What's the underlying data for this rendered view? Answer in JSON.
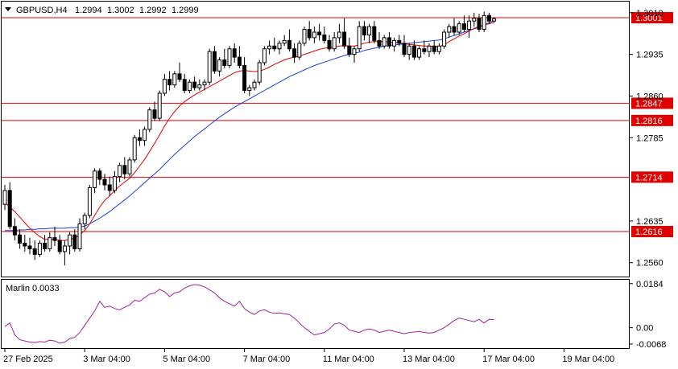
{
  "chart_data": [
    {
      "type": "candlestick",
      "symbol": "GBPUSD,H4",
      "ohlc_header": [
        "1.2994",
        "1.3002",
        "1.2992",
        "1.2999"
      ],
      "ylim": [
        1.2535,
        1.303
      ],
      "y_ticks": [
        {
          "value": 1.301,
          "label": "1.3010"
        },
        {
          "value": 1.2935,
          "label": "1.2935"
        },
        {
          "value": 1.286,
          "label": "1.2860"
        },
        {
          "value": 1.2785,
          "label": "1.2785"
        },
        {
          "value": 1.2635,
          "label": "1.2635"
        },
        {
          "value": 1.256,
          "label": "1.2560"
        }
      ],
      "x_ticks": [
        {
          "index": 0,
          "label": "27 Feb 2025"
        },
        {
          "index": 16,
          "label": "3 Mar 04:00"
        },
        {
          "index": 32,
          "label": "5 Mar 04:00"
        },
        {
          "index": 48,
          "label": "7 Mar 04:00"
        },
        {
          "index": 64,
          "label": "11 Mar 04:00"
        },
        {
          "index": 80,
          "label": "13 Mar 04:00"
        },
        {
          "index": 96,
          "label": "17 Mar 04:00"
        },
        {
          "index": 112,
          "label": "19 Mar 04:00"
        }
      ],
      "levels": [
        {
          "value": 1.3001,
          "label": "1.3001"
        },
        {
          "value": 1.2847,
          "label": "1.2847"
        },
        {
          "value": 1.2816,
          "label": "1.2816"
        },
        {
          "value": 1.2714,
          "label": "1.2714"
        },
        {
          "value": 1.2616,
          "label": "1.2616"
        }
      ],
      "candles": [
        [
          1.2665,
          1.27,
          1.2655,
          1.269
        ],
        [
          1.269,
          1.2705,
          1.262,
          1.2625
        ],
        [
          1.2625,
          1.264,
          1.26,
          1.261
        ],
        [
          1.261,
          1.262,
          1.2585,
          1.2595
        ],
        [
          1.2595,
          1.261,
          1.258,
          1.259
        ],
        [
          1.259,
          1.2605,
          1.2575,
          1.2585
        ],
        [
          1.2585,
          1.26,
          1.2565,
          1.2575
        ],
        [
          1.2575,
          1.26,
          1.257,
          1.2595
        ],
        [
          1.2595,
          1.261,
          1.258,
          1.2585
        ],
        [
          1.2585,
          1.2615,
          1.258,
          1.2605
        ],
        [
          1.2605,
          1.2625,
          1.259,
          1.26
        ],
        [
          1.26,
          1.261,
          1.2575,
          1.258
        ],
        [
          1.258,
          1.26,
          1.2555,
          1.259
        ],
        [
          1.259,
          1.2615,
          1.2575,
          1.261
        ],
        [
          1.261,
          1.262,
          1.258,
          1.2585
        ],
        [
          1.2585,
          1.264,
          1.258,
          1.263
        ],
        [
          1.263,
          1.265,
          1.262,
          1.2645
        ],
        [
          1.2645,
          1.27,
          1.264,
          1.2695
        ],
        [
          1.2695,
          1.273,
          1.2685,
          1.2725
        ],
        [
          1.2725,
          1.273,
          1.27,
          1.271
        ],
        [
          1.271,
          1.272,
          1.269,
          1.27
        ],
        [
          1.27,
          1.2715,
          1.268,
          1.269
        ],
        [
          1.269,
          1.2725,
          1.2685,
          1.2715
        ],
        [
          1.2715,
          1.274,
          1.2705,
          1.2735
        ],
        [
          1.2735,
          1.275,
          1.271,
          1.272
        ],
        [
          1.272,
          1.275,
          1.2715,
          1.2745
        ],
        [
          1.2745,
          1.279,
          1.274,
          1.2785
        ],
        [
          1.2785,
          1.28,
          1.277,
          1.278
        ],
        [
          1.278,
          1.2805,
          1.277,
          1.28
        ],
        [
          1.28,
          1.284,
          1.2795,
          1.2835
        ],
        [
          1.2835,
          1.285,
          1.2815,
          1.282
        ],
        [
          1.282,
          1.287,
          1.2815,
          1.2865
        ],
        [
          1.2865,
          1.29,
          1.286,
          1.289
        ],
        [
          1.289,
          1.2905,
          1.287,
          1.288
        ],
        [
          1.288,
          1.2905,
          1.2875,
          1.29
        ],
        [
          1.29,
          1.292,
          1.2885,
          1.289
        ],
        [
          1.289,
          1.29,
          1.2865,
          1.287
        ],
        [
          1.287,
          1.289,
          1.2865,
          1.2885
        ],
        [
          1.2885,
          1.2895,
          1.287,
          1.2875
        ],
        [
          1.2875,
          1.289,
          1.287,
          1.288
        ],
        [
          1.288,
          1.289,
          1.287,
          1.2885
        ],
        [
          1.2885,
          1.2945,
          1.288,
          1.294
        ],
        [
          1.294,
          1.295,
          1.29,
          1.2905
        ],
        [
          1.2905,
          1.293,
          1.2895,
          1.2925
        ],
        [
          1.2925,
          1.2945,
          1.291,
          1.2915
        ],
        [
          1.2915,
          1.295,
          1.291,
          1.2945
        ],
        [
          1.2945,
          1.2955,
          1.292,
          1.293
        ],
        [
          1.293,
          1.295,
          1.291,
          1.2915
        ],
        [
          1.2915,
          1.293,
          1.2865,
          1.287
        ],
        [
          1.287,
          1.288,
          1.286,
          1.2875
        ],
        [
          1.2875,
          1.289,
          1.287,
          1.2885
        ],
        [
          1.2885,
          1.2925,
          1.288,
          1.292
        ],
        [
          1.292,
          1.295,
          1.2915,
          1.2945
        ],
        [
          1.2945,
          1.296,
          1.2935,
          1.295
        ],
        [
          1.295,
          1.2965,
          1.294,
          1.2945
        ],
        [
          1.2945,
          1.296,
          1.2935,
          1.2955
        ],
        [
          1.2955,
          1.297,
          1.295,
          1.296
        ],
        [
          1.296,
          1.298,
          1.294,
          1.2945
        ],
        [
          1.2945,
          1.2955,
          1.292,
          1.293
        ],
        [
          1.293,
          1.296,
          1.2925,
          1.2955
        ],
        [
          1.2955,
          1.2985,
          1.295,
          1.298
        ],
        [
          1.298,
          1.2995,
          1.296,
          1.2965
        ],
        [
          1.2965,
          1.2985,
          1.2955,
          1.2975
        ],
        [
          1.2975,
          1.299,
          1.296,
          1.297
        ],
        [
          1.297,
          1.2985,
          1.2955,
          1.296
        ],
        [
          1.296,
          1.297,
          1.294,
          1.2945
        ],
        [
          1.2945,
          1.2975,
          1.294,
          1.2965
        ],
        [
          1.2965,
          1.299,
          1.2955,
          1.2975
        ],
        [
          1.2975,
          1.3,
          1.2945,
          1.295
        ],
        [
          1.295,
          1.2965,
          1.293,
          1.2935
        ],
        [
          1.2935,
          1.295,
          1.292,
          1.2945
        ],
        [
          1.2945,
          1.2995,
          1.294,
          1.2985
        ],
        [
          1.2985,
          1.2995,
          1.296,
          1.297
        ],
        [
          1.297,
          1.299,
          1.2955,
          1.2985
        ],
        [
          1.2985,
          1.2995,
          1.2955,
          1.296
        ],
        [
          1.296,
          1.2975,
          1.2945,
          1.295
        ],
        [
          1.295,
          1.297,
          1.2945,
          1.2965
        ],
        [
          1.2965,
          1.2975,
          1.2945,
          1.295
        ],
        [
          1.295,
          1.2965,
          1.294,
          1.296
        ],
        [
          1.296,
          1.297,
          1.295,
          1.2955
        ],
        [
          1.2955,
          1.297,
          1.293,
          1.2935
        ],
        [
          1.2935,
          1.2955,
          1.2925,
          1.295
        ],
        [
          1.295,
          1.296,
          1.2925,
          1.293
        ],
        [
          1.293,
          1.295,
          1.2925,
          1.2945
        ],
        [
          1.2945,
          1.296,
          1.2935,
          1.294
        ],
        [
          1.294,
          1.2955,
          1.293,
          1.295
        ],
        [
          1.295,
          1.296,
          1.2935,
          1.294
        ],
        [
          1.294,
          1.2955,
          1.2935,
          1.295
        ],
        [
          1.295,
          1.298,
          1.2945,
          1.2975
        ],
        [
          1.2975,
          1.299,
          1.2965,
          1.2985
        ],
        [
          1.2985,
          1.3,
          1.297,
          1.2975
        ],
        [
          1.2975,
          1.2995,
          1.297,
          1.299
        ],
        [
          1.299,
          1.3005,
          1.2975,
          1.298
        ],
        [
          1.298,
          1.3005,
          1.2965,
          1.2995
        ],
        [
          1.2995,
          1.301,
          1.2985,
          1.3
        ],
        [
          1.3,
          1.3008,
          1.2975,
          1.298
        ],
        [
          1.298,
          1.3012,
          1.2975,
          1.3005
        ],
        [
          1.3005,
          1.301,
          1.299,
          1.2995
        ],
        [
          1.2995,
          1.3002,
          1.2992,
          1.2999
        ]
      ],
      "ma_red": [
        1.2668,
        1.266,
        1.2652,
        1.2642,
        1.2632,
        1.2622,
        1.2614,
        1.2607,
        1.2602,
        1.2602,
        1.2602,
        1.26,
        1.26,
        1.2602,
        1.2604,
        1.261,
        1.2618,
        1.263,
        1.2645,
        1.266,
        1.2672,
        1.268,
        1.269,
        1.2698,
        1.2705,
        1.2712,
        1.2722,
        1.2734,
        1.2746,
        1.276,
        1.2775,
        1.279,
        1.2806,
        1.282,
        1.2832,
        1.2842,
        1.285,
        1.2856,
        1.2862,
        1.2867,
        1.2872,
        1.2877,
        1.2882,
        1.2887,
        1.2892,
        1.2897,
        1.2902,
        1.2905,
        1.2906,
        1.2905,
        1.2904,
        1.2905,
        1.2908,
        1.2912,
        1.2917,
        1.2921,
        1.2925,
        1.2928,
        1.293,
        1.2932,
        1.2935,
        1.2938,
        1.2941,
        1.2944,
        1.2946,
        1.2947,
        1.2948,
        1.295,
        1.2951,
        1.295,
        1.295,
        1.2952,
        1.2955,
        1.2957,
        1.2958,
        1.2958,
        1.2958,
        1.2957,
        1.2957,
        1.2956,
        1.2954,
        1.2953,
        1.2952,
        1.2951,
        1.295,
        1.295,
        1.2949,
        1.2949,
        1.2952,
        1.2958,
        1.2963,
        1.2968,
        1.2972,
        1.2977,
        1.2982,
        1.2985,
        1.2988,
        1.299,
        1.2993
      ],
      "ma_blue": [
        1.2618,
        1.2618,
        1.2618,
        1.2619,
        1.2619,
        1.262,
        1.262,
        1.2621,
        1.2621,
        1.2622,
        1.2622,
        1.2622,
        1.2622,
        1.2623,
        1.2623,
        1.2624,
        1.2626,
        1.263,
        1.2635,
        1.264,
        1.2646,
        1.2652,
        1.2659,
        1.2666,
        1.2673,
        1.268,
        1.2688,
        1.2696,
        1.2704,
        1.2712,
        1.272,
        1.2728,
        1.2737,
        1.2746,
        1.2755,
        1.2763,
        1.2771,
        1.2779,
        1.2787,
        1.2794,
        1.2801,
        1.2808,
        1.2815,
        1.2822,
        1.2828,
        1.2834,
        1.284,
        1.2845,
        1.285,
        1.2855,
        1.286,
        1.2865,
        1.287,
        1.2875,
        1.288,
        1.2885,
        1.289,
        1.2895,
        1.2899,
        1.2903,
        1.2907,
        1.2911,
        1.2915,
        1.2918,
        1.2921,
        1.2924,
        1.2927,
        1.293,
        1.2933,
        1.2935,
        1.2937,
        1.2939,
        1.2942,
        1.2944,
        1.2946,
        1.2948,
        1.295,
        1.2951,
        1.2952,
        1.2953,
        1.2954,
        1.2955,
        1.2956,
        1.2957,
        1.2958,
        1.2959,
        1.296,
        1.2961,
        1.2963,
        1.2966,
        1.2969,
        1.2972,
        1.2975,
        1.2978,
        1.2981,
        1.2984,
        1.2988,
        1.2992,
        1.2996
      ]
    },
    {
      "type": "line",
      "title": "Marlin 0.0033",
      "ylim": [
        -0.0085,
        0.02
      ],
      "y_ticks": [
        {
          "value": 0.0184,
          "label": "0.0184"
        },
        {
          "value": 0.0,
          "label": "0.00"
        },
        {
          "value": -0.0068,
          "label": "-0.0068"
        }
      ],
      "values": [
        0.0005,
        0.002,
        -0.003,
        -0.005,
        -0.0055,
        -0.006,
        -0.0062,
        -0.0058,
        -0.006,
        -0.0052,
        -0.0055,
        -0.0065,
        -0.006,
        -0.0045,
        -0.004,
        -0.002,
        0.001,
        0.004,
        0.007,
        0.011,
        0.0085,
        0.009,
        0.008,
        0.0075,
        0.0085,
        0.0095,
        0.0115,
        0.011,
        0.0125,
        0.014,
        0.0145,
        0.016,
        0.015,
        0.013,
        0.0145,
        0.015,
        0.0165,
        0.0175,
        0.018,
        0.0178,
        0.017,
        0.0158,
        0.0145,
        0.0125,
        0.011,
        0.01,
        0.009,
        0.011,
        0.008,
        0.0065,
        0.0055,
        0.007,
        0.0075,
        0.0065,
        0.006,
        0.0062,
        0.0058,
        0.0055,
        0.004,
        0.002,
        0.0,
        -0.0015,
        -0.003,
        -0.0025,
        -0.002,
        -0.0005,
        0.0015,
        0.002,
        0.001,
        -0.001,
        -0.0015,
        -0.002,
        -0.001,
        -0.0005,
        -0.001,
        -0.002,
        -0.0015,
        -0.001,
        -0.0015,
        -0.002,
        -0.0025,
        -0.002,
        -0.0018,
        -0.0015,
        -0.002,
        -0.0022,
        -0.002,
        -0.001,
        0.0,
        0.0015,
        0.003,
        0.004,
        0.0035,
        0.003,
        0.0025,
        0.0035,
        0.002,
        0.0035,
        0.0033
      ]
    }
  ]
}
